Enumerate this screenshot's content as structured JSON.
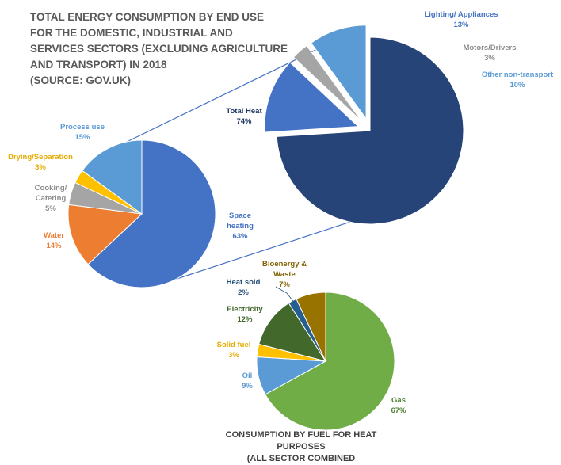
{
  "title": "TOTAL ENERGY CONSUMPTION BY END USE\nFOR THE DOMESTIC, INDUSTRIAL AND\n SERVICES SECTORS (EXCLUDING AGRICULTURE\nAND TRANSPORT) IN 2018\n(SOURCE: GOV.UK)",
  "caption": "CONSUMPTION BY FUEL FOR HEAT PURPOSES\n(ALL SECTOR COMBINED",
  "chart_data": [
    {
      "type": "pie",
      "title": "",
      "slices": [
        {
          "label": "Total Heat",
          "value": 74,
          "display": "74%",
          "color": "#264478",
          "text_color": "#203864"
        },
        {
          "label": "Lighting/ Appliances",
          "value": 13,
          "display": "13%",
          "color": "#4472C4",
          "text_color": "#4472C4",
          "exploded": true
        },
        {
          "label": "Motors/Drivers",
          "value": 3,
          "display": "3%",
          "color": "#A5A5A5",
          "text_color": "#8C8C8C",
          "exploded": true
        },
        {
          "label": "Other non-transport",
          "value": 10,
          "display": "10%",
          "color": "#5B9BD5",
          "text_color": "#5B9BD5",
          "exploded": true
        }
      ]
    },
    {
      "type": "pie",
      "title": "",
      "slices": [
        {
          "label": "Space heating",
          "value": 63,
          "display": "63%",
          "color": "#4472C4",
          "text_color": "#4472C4"
        },
        {
          "label": "Water",
          "value": 14,
          "display": "14%",
          "color": "#ED7D31",
          "text_color": "#ED7D31"
        },
        {
          "label": "Cooking/ Catering",
          "value": 5,
          "display": "5%",
          "color": "#A5A5A5",
          "text_color": "#8C8C8C"
        },
        {
          "label": "Drying/Separation",
          "value": 3,
          "display": "3%",
          "color": "#FFC000",
          "text_color": "#E6AC00"
        },
        {
          "label": "Process use",
          "value": 15,
          "display": "15%",
          "color": "#5B9BD5",
          "text_color": "#5B9BD5"
        }
      ]
    },
    {
      "type": "pie",
      "title": "CONSUMPTION BY FUEL FOR HEAT PURPOSES (ALL SECTOR COMBINED",
      "slices": [
        {
          "label": "Gas",
          "value": 67,
          "display": "67%",
          "color": "#70AD47",
          "text_color": "#548235"
        },
        {
          "label": "Oil",
          "value": 9,
          "display": "9%",
          "color": "#5B9BD5",
          "text_color": "#5B9BD5"
        },
        {
          "label": "Solid fuel",
          "value": 3,
          "display": "3%",
          "color": "#FFC000",
          "text_color": "#E6AC00"
        },
        {
          "label": "Electricity",
          "value": 12,
          "display": "12%",
          "color": "#43682B",
          "text_color": "#43682B"
        },
        {
          "label": "Heat sold",
          "value": 2,
          "display": "2%",
          "color": "#255E91",
          "text_color": "#1F4E79"
        },
        {
          "label": "Bioenergy & Waste",
          "value": 7,
          "display": "7%",
          "color": "#997300",
          "text_color": "#806000"
        }
      ]
    }
  ]
}
